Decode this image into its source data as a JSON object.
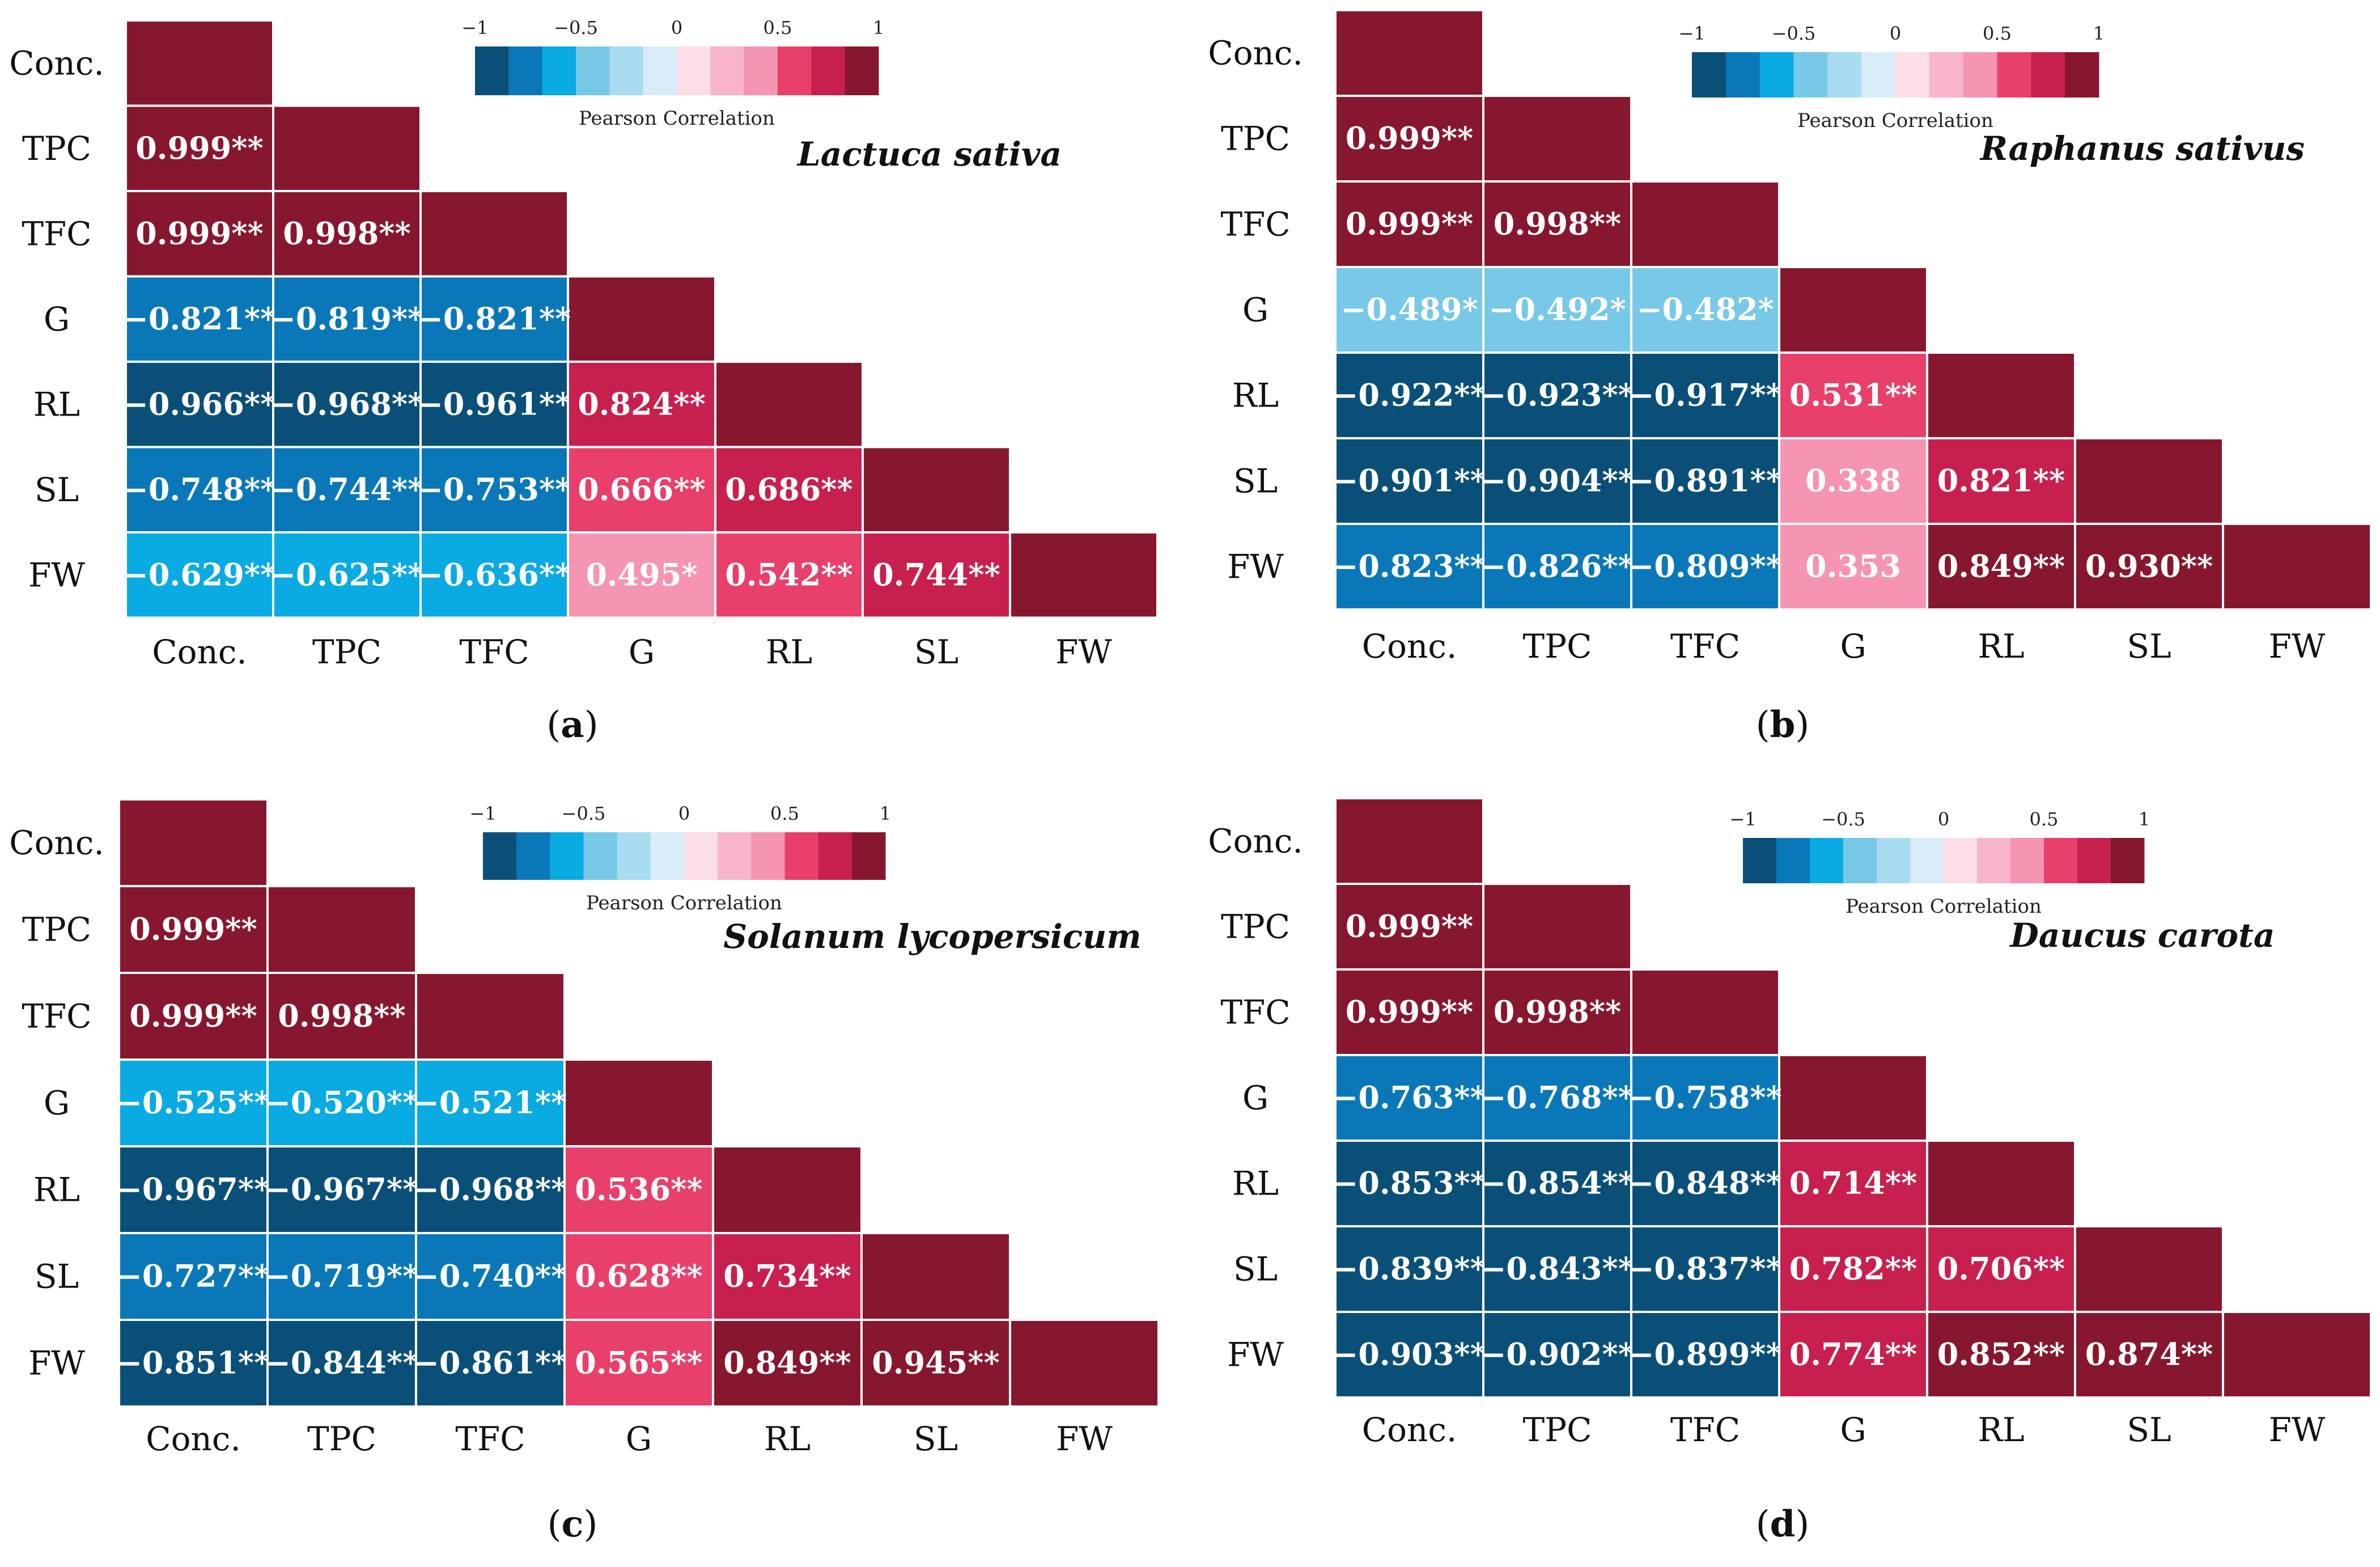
{
  "figure": {
    "colorbar": {
      "label": "Pearson Correlation",
      "tick_labels": [
        "−1",
        "−0.5",
        "0",
        "0.5",
        "1"
      ],
      "tick_values": [
        -1,
        -0.5,
        0,
        0.5,
        1
      ],
      "colors": [
        "#0a4f78",
        "#0a78b8",
        "#0aaae2",
        "#78c8e8",
        "#a8dcf0",
        "#d8ecf8",
        "#fbdde6",
        "#f8b4c8",
        "#f595b1",
        "#e8406b",
        "#c8204e",
        "#86172f"
      ]
    },
    "variables": [
      "Conc.",
      "TPC",
      "TFC",
      "G",
      "RL",
      "SL",
      "FW"
    ]
  },
  "chart_data": [
    {
      "type": "heatmap",
      "panel_label": "a",
      "title": "Lactuca sativa",
      "x_labels": [
        "Conc.",
        "TPC",
        "TFC",
        "G",
        "RL",
        "SL",
        "FW"
      ],
      "y_labels": [
        "Conc.",
        "TPC",
        "TFC",
        "G",
        "RL",
        "SL",
        "FW"
      ],
      "colorbar_range": [
        -1,
        1
      ],
      "cells": [
        {
          "row": "TPC",
          "col": "Conc.",
          "value": 0.999,
          "label": "0.999**"
        },
        {
          "row": "TFC",
          "col": "Conc.",
          "value": 0.999,
          "label": "0.999**"
        },
        {
          "row": "TFC",
          "col": "TPC",
          "value": 0.998,
          "label": "0.998**"
        },
        {
          "row": "G",
          "col": "Conc.",
          "value": -0.821,
          "label": "−0.821**"
        },
        {
          "row": "G",
          "col": "TPC",
          "value": -0.819,
          "label": "−0.819**"
        },
        {
          "row": "G",
          "col": "TFC",
          "value": -0.821,
          "label": "−0.821**"
        },
        {
          "row": "RL",
          "col": "Conc.",
          "value": -0.966,
          "label": "−0.966**"
        },
        {
          "row": "RL",
          "col": "TPC",
          "value": -0.968,
          "label": "−0.968**"
        },
        {
          "row": "RL",
          "col": "TFC",
          "value": -0.961,
          "label": "−0.961**"
        },
        {
          "row": "RL",
          "col": "G",
          "value": 0.824,
          "label": "0.824**"
        },
        {
          "row": "SL",
          "col": "Conc.",
          "value": -0.748,
          "label": "−0.748**"
        },
        {
          "row": "SL",
          "col": "TPC",
          "value": -0.744,
          "label": "−0.744**"
        },
        {
          "row": "SL",
          "col": "TFC",
          "value": -0.753,
          "label": "−0.753**"
        },
        {
          "row": "SL",
          "col": "G",
          "value": 0.666,
          "label": "0.666**"
        },
        {
          "row": "SL",
          "col": "RL",
          "value": 0.686,
          "label": "0.686**"
        },
        {
          "row": "FW",
          "col": "Conc.",
          "value": -0.629,
          "label": "−0.629**"
        },
        {
          "row": "FW",
          "col": "TPC",
          "value": -0.625,
          "label": "−0.625**"
        },
        {
          "row": "FW",
          "col": "TFC",
          "value": -0.636,
          "label": "−0.636**"
        },
        {
          "row": "FW",
          "col": "G",
          "value": 0.495,
          "label": "0.495*"
        },
        {
          "row": "FW",
          "col": "RL",
          "value": 0.542,
          "label": "0.542**"
        },
        {
          "row": "FW",
          "col": "SL",
          "value": 0.744,
          "label": "0.744**"
        }
      ]
    },
    {
      "type": "heatmap",
      "panel_label": "b",
      "title": "Raphanus sativus",
      "x_labels": [
        "Conc.",
        "TPC",
        "TFC",
        "G",
        "RL",
        "SL",
        "FW"
      ],
      "y_labels": [
        "Conc.",
        "TPC",
        "TFC",
        "G",
        "RL",
        "SL",
        "FW"
      ],
      "colorbar_range": [
        -1,
        1
      ],
      "cells": [
        {
          "row": "TPC",
          "col": "Conc.",
          "value": 0.999,
          "label": "0.999**"
        },
        {
          "row": "TFC",
          "col": "Conc.",
          "value": 0.999,
          "label": "0.999**"
        },
        {
          "row": "TFC",
          "col": "TPC",
          "value": 0.998,
          "label": "0.998**"
        },
        {
          "row": "G",
          "col": "Conc.",
          "value": -0.489,
          "label": "−0.489*"
        },
        {
          "row": "G",
          "col": "TPC",
          "value": -0.492,
          "label": "−0.492*"
        },
        {
          "row": "G",
          "col": "TFC",
          "value": -0.482,
          "label": "−0.482*"
        },
        {
          "row": "RL",
          "col": "Conc.",
          "value": -0.922,
          "label": "−0.922**"
        },
        {
          "row": "RL",
          "col": "TPC",
          "value": -0.923,
          "label": "−0.923**"
        },
        {
          "row": "RL",
          "col": "TFC",
          "value": -0.917,
          "label": "−0.917**"
        },
        {
          "row": "RL",
          "col": "G",
          "value": 0.531,
          "label": "0.531**"
        },
        {
          "row": "SL",
          "col": "Conc.",
          "value": -0.901,
          "label": "−0.901**"
        },
        {
          "row": "SL",
          "col": "TPC",
          "value": -0.904,
          "label": "−0.904**"
        },
        {
          "row": "SL",
          "col": "TFC",
          "value": -0.891,
          "label": "−0.891**"
        },
        {
          "row": "SL",
          "col": "G",
          "value": 0.338,
          "label": "0.338"
        },
        {
          "row": "SL",
          "col": "RL",
          "value": 0.821,
          "label": "0.821**"
        },
        {
          "row": "FW",
          "col": "Conc.",
          "value": -0.823,
          "label": "−0.823**"
        },
        {
          "row": "FW",
          "col": "TPC",
          "value": -0.826,
          "label": "−0.826**"
        },
        {
          "row": "FW",
          "col": "TFC",
          "value": -0.809,
          "label": "−0.809**"
        },
        {
          "row": "FW",
          "col": "G",
          "value": 0.353,
          "label": "0.353"
        },
        {
          "row": "FW",
          "col": "RL",
          "value": 0.849,
          "label": "0.849**"
        },
        {
          "row": "FW",
          "col": "SL",
          "value": 0.93,
          "label": "0.930**"
        }
      ]
    },
    {
      "type": "heatmap",
      "panel_label": "c",
      "title": "Solanum lycopersicum",
      "x_labels": [
        "Conc.",
        "TPC",
        "TFC",
        "G",
        "RL",
        "SL",
        "FW"
      ],
      "y_labels": [
        "Conc.",
        "TPC",
        "TFC",
        "G",
        "RL",
        "SL",
        "FW"
      ],
      "colorbar_range": [
        -1,
        1
      ],
      "cells": [
        {
          "row": "TPC",
          "col": "Conc.",
          "value": 0.999,
          "label": "0.999**"
        },
        {
          "row": "TFC",
          "col": "Conc.",
          "value": 0.999,
          "label": "0.999**"
        },
        {
          "row": "TFC",
          "col": "TPC",
          "value": 0.998,
          "label": "0.998**"
        },
        {
          "row": "G",
          "col": "Conc.",
          "value": -0.525,
          "label": "−0.525**"
        },
        {
          "row": "G",
          "col": "TPC",
          "value": -0.52,
          "label": "−0.520**"
        },
        {
          "row": "G",
          "col": "TFC",
          "value": -0.521,
          "label": "−0.521**"
        },
        {
          "row": "RL",
          "col": "Conc.",
          "value": -0.967,
          "label": "−0.967**"
        },
        {
          "row": "RL",
          "col": "TPC",
          "value": -0.967,
          "label": "−0.967**"
        },
        {
          "row": "RL",
          "col": "TFC",
          "value": -0.968,
          "label": "−0.968**"
        },
        {
          "row": "RL",
          "col": "G",
          "value": 0.536,
          "label": "0.536**"
        },
        {
          "row": "SL",
          "col": "Conc.",
          "value": -0.727,
          "label": "−0.727**"
        },
        {
          "row": "SL",
          "col": "TPC",
          "value": -0.719,
          "label": "−0.719**"
        },
        {
          "row": "SL",
          "col": "TFC",
          "value": -0.74,
          "label": "−0.740**"
        },
        {
          "row": "SL",
          "col": "G",
          "value": 0.628,
          "label": "0.628**"
        },
        {
          "row": "SL",
          "col": "RL",
          "value": 0.734,
          "label": "0.734**"
        },
        {
          "row": "FW",
          "col": "Conc.",
          "value": -0.851,
          "label": "−0.851**"
        },
        {
          "row": "FW",
          "col": "TPC",
          "value": -0.844,
          "label": "−0.844**"
        },
        {
          "row": "FW",
          "col": "TFC",
          "value": -0.861,
          "label": "−0.861**"
        },
        {
          "row": "FW",
          "col": "G",
          "value": 0.565,
          "label": "0.565**"
        },
        {
          "row": "FW",
          "col": "RL",
          "value": 0.849,
          "label": "0.849**"
        },
        {
          "row": "FW",
          "col": "SL",
          "value": 0.945,
          "label": "0.945**"
        }
      ]
    },
    {
      "type": "heatmap",
      "panel_label": "d",
      "title": "Daucus carota",
      "x_labels": [
        "Conc.",
        "TPC",
        "TFC",
        "G",
        "RL",
        "SL",
        "FW"
      ],
      "y_labels": [
        "Conc.",
        "TPC",
        "TFC",
        "G",
        "RL",
        "SL",
        "FW"
      ],
      "colorbar_range": [
        -1,
        1
      ],
      "cells": [
        {
          "row": "TPC",
          "col": "Conc.",
          "value": 0.999,
          "label": "0.999**"
        },
        {
          "row": "TFC",
          "col": "Conc.",
          "value": 0.999,
          "label": "0.999**"
        },
        {
          "row": "TFC",
          "col": "TPC",
          "value": 0.998,
          "label": "0.998**"
        },
        {
          "row": "G",
          "col": "Conc.",
          "value": -0.763,
          "label": "−0.763**"
        },
        {
          "row": "G",
          "col": "TPC",
          "value": -0.768,
          "label": "−0.768**"
        },
        {
          "row": "G",
          "col": "TFC",
          "value": -0.758,
          "label": "−0.758**"
        },
        {
          "row": "RL",
          "col": "Conc.",
          "value": -0.853,
          "label": "−0.853**"
        },
        {
          "row": "RL",
          "col": "TPC",
          "value": -0.854,
          "label": "−0.854**"
        },
        {
          "row": "RL",
          "col": "TFC",
          "value": -0.848,
          "label": "−0.848**"
        },
        {
          "row": "RL",
          "col": "G",
          "value": 0.714,
          "label": "0.714**"
        },
        {
          "row": "SL",
          "col": "Conc.",
          "value": -0.839,
          "label": "−0.839**"
        },
        {
          "row": "SL",
          "col": "TPC",
          "value": -0.843,
          "label": "−0.843**"
        },
        {
          "row": "SL",
          "col": "TFC",
          "value": -0.837,
          "label": "−0.837**"
        },
        {
          "row": "SL",
          "col": "G",
          "value": 0.782,
          "label": "0.782**"
        },
        {
          "row": "SL",
          "col": "RL",
          "value": 0.706,
          "label": "0.706**"
        },
        {
          "row": "FW",
          "col": "Conc.",
          "value": -0.903,
          "label": "−0.903**"
        },
        {
          "row": "FW",
          "col": "TPC",
          "value": -0.902,
          "label": "−0.902**"
        },
        {
          "row": "FW",
          "col": "TFC",
          "value": -0.899,
          "label": "−0.899**"
        },
        {
          "row": "FW",
          "col": "G",
          "value": 0.774,
          "label": "0.774**"
        },
        {
          "row": "FW",
          "col": "RL",
          "value": 0.852,
          "label": "0.852**"
        },
        {
          "row": "FW",
          "col": "SL",
          "value": 0.874,
          "label": "0.874**"
        }
      ]
    }
  ]
}
